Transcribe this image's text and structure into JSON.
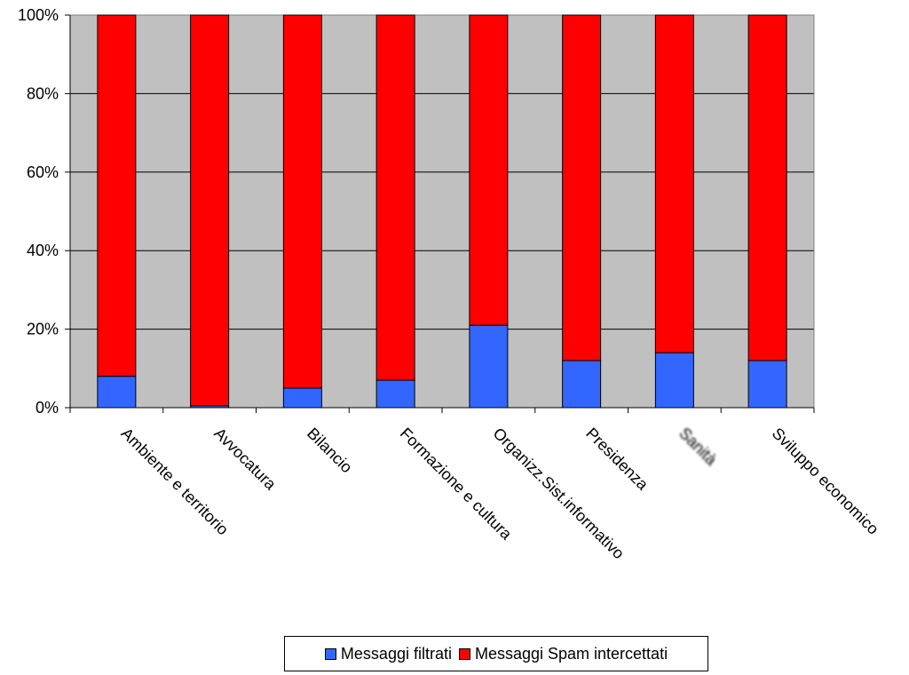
{
  "chart_data": {
    "type": "bar",
    "stacked": true,
    "percent": true,
    "categories": [
      "Ambiente e territorio",
      "Avvocatura",
      "Bilancio",
      "Formazione e cultura",
      "Organizz.Sist.informativo",
      "Presidenza",
      "Sanità",
      "Sviluppo economico"
    ],
    "category_obscured": [
      false,
      false,
      false,
      false,
      false,
      false,
      true,
      false
    ],
    "series": [
      {
        "name": "Messaggi filtrati",
        "color": "#3366FF",
        "values": [
          8,
          0.5,
          5,
          7,
          21,
          12,
          14,
          12
        ]
      },
      {
        "name": "Messaggi Spam intercettati",
        "color": "#FF0000",
        "values": [
          92,
          99.5,
          95,
          93,
          79,
          88,
          86,
          88
        ]
      }
    ],
    "yticks": [
      "0%",
      "20%",
      "40%",
      "60%",
      "80%",
      "100%"
    ],
    "ylim": [
      0,
      100
    ],
    "grid": true,
    "plot_background": "#C0C0C0",
    "legend_position": "bottom"
  }
}
